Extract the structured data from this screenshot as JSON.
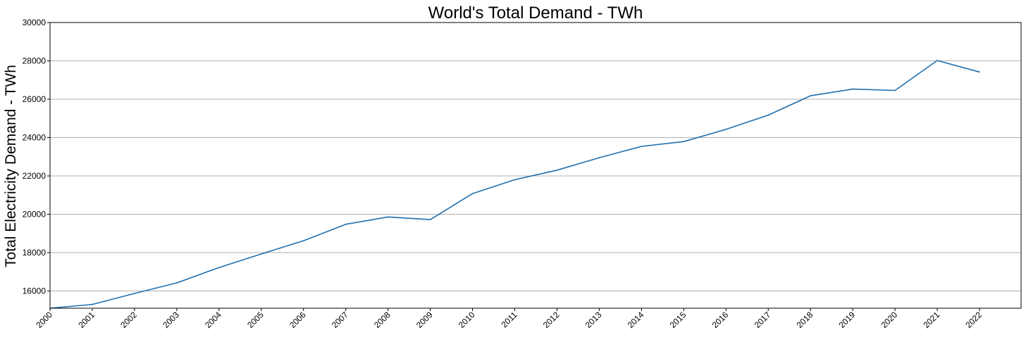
{
  "chart_data": {
    "type": "line",
    "title": "World's Total Demand - TWh",
    "xlabel": "",
    "ylabel": "Total Electricity Demand - TWh",
    "x": [
      "2000",
      "2001",
      "2002",
      "2003",
      "2004",
      "2005",
      "2006",
      "2007",
      "2008",
      "2009",
      "2010",
      "2011",
      "2012",
      "2013",
      "2014",
      "2015",
      "2016",
      "2017",
      "2018",
      "2019",
      "2020",
      "2021",
      "2022"
    ],
    "series": [
      {
        "name": "",
        "values": [
          15100,
          15300,
          15870,
          16420,
          17220,
          17930,
          18620,
          19480,
          19860,
          19720,
          21080,
          21800,
          22300,
          22950,
          23540,
          23790,
          24430,
          25170,
          26180,
          26530,
          26460,
          28020,
          27420
        ]
      }
    ],
    "ylim": [
      15100,
      30000
    ],
    "yticks": [
      16000,
      18000,
      20000,
      22000,
      24000,
      26000,
      28000,
      30000
    ],
    "grid": "horizontal",
    "line_color": "#1f6fae",
    "grid_color": "#b0b0b0"
  }
}
